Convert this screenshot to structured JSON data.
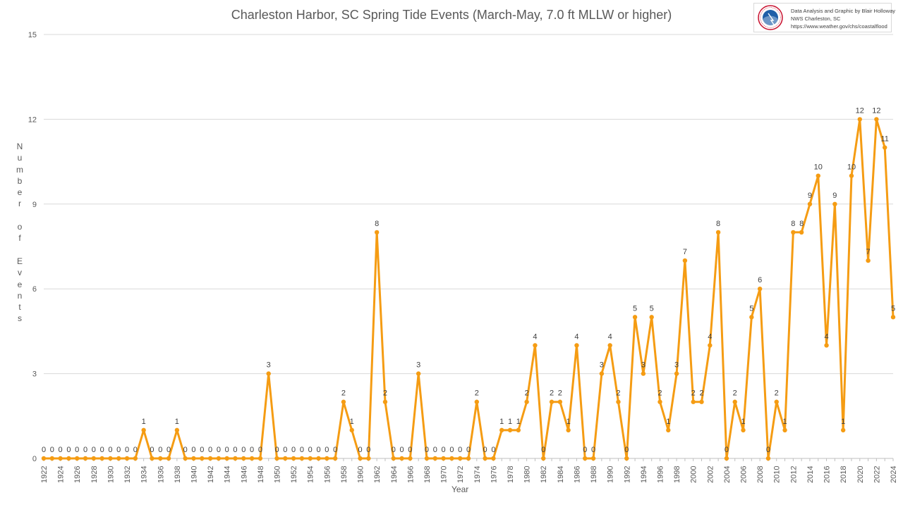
{
  "chart_data": {
    "type": "line",
    "title": "Charleston Harbor, SC Spring Tide Events (March-May, 7.0 ft MLLW or higher)",
    "xlabel": "Year",
    "ylabel": "Number of Events",
    "ylim": [
      0,
      15
    ],
    "yticks": [
      0,
      3,
      6,
      9,
      12,
      15
    ],
    "grid": true,
    "color": "#f59c13",
    "x": [
      1922,
      1923,
      1924,
      1925,
      1926,
      1927,
      1928,
      1929,
      1930,
      1931,
      1932,
      1933,
      1934,
      1935,
      1936,
      1937,
      1938,
      1939,
      1940,
      1941,
      1942,
      1943,
      1944,
      1945,
      1946,
      1947,
      1948,
      1949,
      1950,
      1951,
      1952,
      1953,
      1954,
      1955,
      1956,
      1957,
      1958,
      1959,
      1960,
      1961,
      1962,
      1963,
      1964,
      1965,
      1966,
      1967,
      1968,
      1969,
      1970,
      1971,
      1972,
      1973,
      1974,
      1975,
      1976,
      1977,
      1978,
      1979,
      1980,
      1981,
      1982,
      1983,
      1984,
      1985,
      1986,
      1987,
      1988,
      1989,
      1990,
      1991,
      1992,
      1993,
      1994,
      1995,
      1996,
      1997,
      1998,
      1999,
      2000,
      2001,
      2002,
      2003,
      2004,
      2005,
      2006,
      2007,
      2008,
      2009,
      2010,
      2011,
      2012,
      2013,
      2014,
      2015,
      2016,
      2017,
      2018,
      2019,
      2020,
      2021,
      2022,
      2023,
      2024
    ],
    "values": [
      0,
      0,
      0,
      0,
      0,
      0,
      0,
      0,
      0,
      0,
      0,
      0,
      1,
      0,
      0,
      0,
      1,
      0,
      0,
      0,
      0,
      0,
      0,
      0,
      0,
      0,
      0,
      3,
      0,
      0,
      0,
      0,
      0,
      0,
      0,
      0,
      2,
      1,
      0,
      0,
      8,
      2,
      0,
      0,
      0,
      3,
      0,
      0,
      0,
      0,
      0,
      0,
      2,
      0,
      0,
      1,
      1,
      1,
      2,
      4,
      0,
      2,
      2,
      1,
      4,
      0,
      0,
      3,
      4,
      2,
      0,
      5,
      3,
      5,
      2,
      1,
      3,
      7,
      2,
      2,
      4,
      8,
      0,
      2,
      1,
      5,
      6,
      0,
      2,
      1,
      8,
      8,
      9,
      10,
      4,
      9,
      1,
      10,
      12,
      7,
      12,
      11,
      5
    ],
    "xtick_labels": [
      "1922",
      "1924",
      "1926",
      "1928",
      "1930",
      "1932",
      "1934",
      "1936",
      "1938",
      "1940",
      "1942",
      "1944",
      "1946",
      "1948",
      "1950",
      "1952",
      "1954",
      "1956",
      "1958",
      "1960",
      "1962",
      "1964",
      "1966",
      "1968",
      "1970",
      "1972",
      "1974",
      "1976",
      "1978",
      "1980",
      "1982",
      "1984",
      "1986",
      "1988",
      "1990",
      "1992",
      "1994",
      "1996",
      "1998",
      "2000",
      "2002",
      "2004",
      "2006",
      "2008",
      "2010",
      "2012",
      "2014",
      "2016",
      "2018",
      "2020",
      "2022",
      "2024"
    ]
  },
  "credit": {
    "line1": "Data Analysis and Graphic by Blair Holloway",
    "line2": "NWS Charleston, SC",
    "line3": "https://www.weather.gov/chs/coastalflood",
    "logo_text": "NATIONAL WEATHER SERVICE"
  },
  "ylabel_letters": [
    "N",
    "u",
    "m",
    "b",
    "e",
    "r",
    "",
    "o",
    "f",
    "",
    "E",
    "v",
    "e",
    "n",
    "t",
    "s"
  ]
}
